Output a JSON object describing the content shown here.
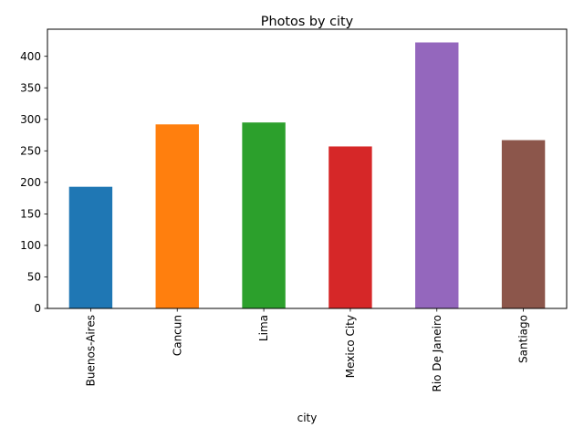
{
  "chart_data": {
    "type": "bar",
    "title": "Photos by city",
    "xlabel": "city",
    "ylabel": "",
    "categories": [
      "Buenos-Aires",
      "Cancun",
      "Lima",
      "Mexico City",
      "Rio De Janeiro",
      "Santiago"
    ],
    "values": [
      193,
      292,
      295,
      257,
      422,
      267
    ],
    "colors": [
      "#1f77b4",
      "#ff7f0e",
      "#2ca02c",
      "#d62728",
      "#9467bd",
      "#8c564b"
    ],
    "ylim": [
      0,
      443
    ],
    "yticks": [
      0,
      50,
      100,
      150,
      200,
      250,
      300,
      350,
      400
    ],
    "grid": false,
    "legend": "none"
  }
}
